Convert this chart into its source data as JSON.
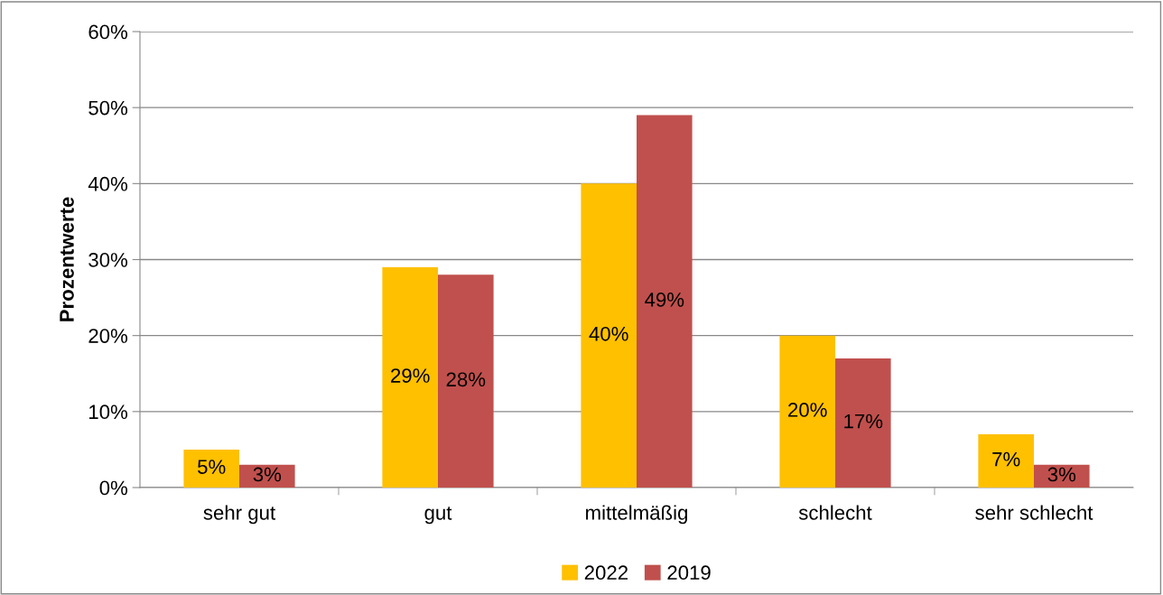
{
  "chart_data": {
    "type": "bar",
    "ylabel": "Prozentwerte",
    "categories": [
      "sehr gut",
      "gut",
      "mittelmäßig",
      "schlecht",
      "sehr schlecht"
    ],
    "series": [
      {
        "name": "2022",
        "color": "#ffc000",
        "values": [
          5,
          29,
          40,
          20,
          7
        ],
        "value_labels": [
          "5%",
          "29%",
          "40%",
          "20%",
          "7%"
        ]
      },
      {
        "name": "2019",
        "color": "#c0504d",
        "values": [
          3,
          28,
          49,
          17,
          3
        ],
        "value_labels": [
          "3%",
          "28%",
          "49%",
          "17%",
          "3%"
        ]
      }
    ],
    "ylim": [
      0,
      60
    ],
    "yticks": [
      {
        "value": 0,
        "label": "0%"
      },
      {
        "value": 10,
        "label": "10%"
      },
      {
        "value": 20,
        "label": "20%"
      },
      {
        "value": 30,
        "label": "30%"
      },
      {
        "value": 40,
        "label": "40%"
      },
      {
        "value": 50,
        "label": "50%"
      },
      {
        "value": 60,
        "label": "60%"
      }
    ],
    "grid": "y",
    "legend": "bottom"
  }
}
